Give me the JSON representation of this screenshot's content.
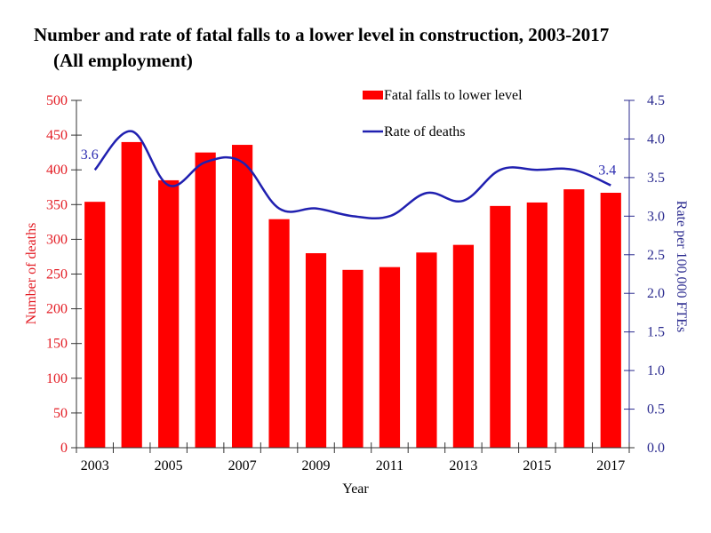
{
  "chart_data": {
    "type": "bar",
    "title": "Number and rate of fatal falls to a lower level in construction, 2003-2017",
    "subtitle": "(All employment)",
    "xlabel": "Year",
    "ylabel": "Number of deaths",
    "y2label": "Rate per 100,000 FTEs",
    "categories": [
      "2003",
      "2004",
      "2005",
      "2006",
      "2007",
      "2008",
      "2009",
      "2010",
      "2011",
      "2012",
      "2013",
      "2014",
      "2015",
      "2016",
      "2017"
    ],
    "x_tick_labels": [
      "2003",
      "2005",
      "2007",
      "2009",
      "2011",
      "2013",
      "2015",
      "2017"
    ],
    "ylim": [
      0,
      500
    ],
    "y_ticks": [
      "0",
      "50",
      "100",
      "150",
      "200",
      "250",
      "300",
      "350",
      "400",
      "450",
      "500"
    ],
    "y2lim": [
      0,
      4.5
    ],
    "y2_ticks": [
      "0.0",
      "0.5",
      "1.0",
      "1.5",
      "2.0",
      "2.5",
      "3.0",
      "3.5",
      "4.0",
      "4.5"
    ],
    "grid": false,
    "legend_position": "top-center",
    "series": [
      {
        "name": "Fatal falls to lower level",
        "type": "bar",
        "axis": "left",
        "color": "#ff0000",
        "values": [
          354,
          440,
          385,
          425,
          436,
          329,
          280,
          256,
          260,
          281,
          292,
          348,
          353,
          372,
          367
        ]
      },
      {
        "name": "Rate of deaths",
        "type": "line",
        "axis": "right",
        "color": "#2020b0",
        "values": [
          3.6,
          4.1,
          3.4,
          3.7,
          3.7,
          3.1,
          3.1,
          3.0,
          3.0,
          3.3,
          3.2,
          3.6,
          3.6,
          3.6,
          3.4
        ]
      }
    ],
    "annotations": [
      {
        "category": "2003",
        "series": "Rate of deaths",
        "text": "3.6"
      },
      {
        "category": "2017",
        "series": "Rate of deaths",
        "text": "3.4"
      }
    ]
  }
}
